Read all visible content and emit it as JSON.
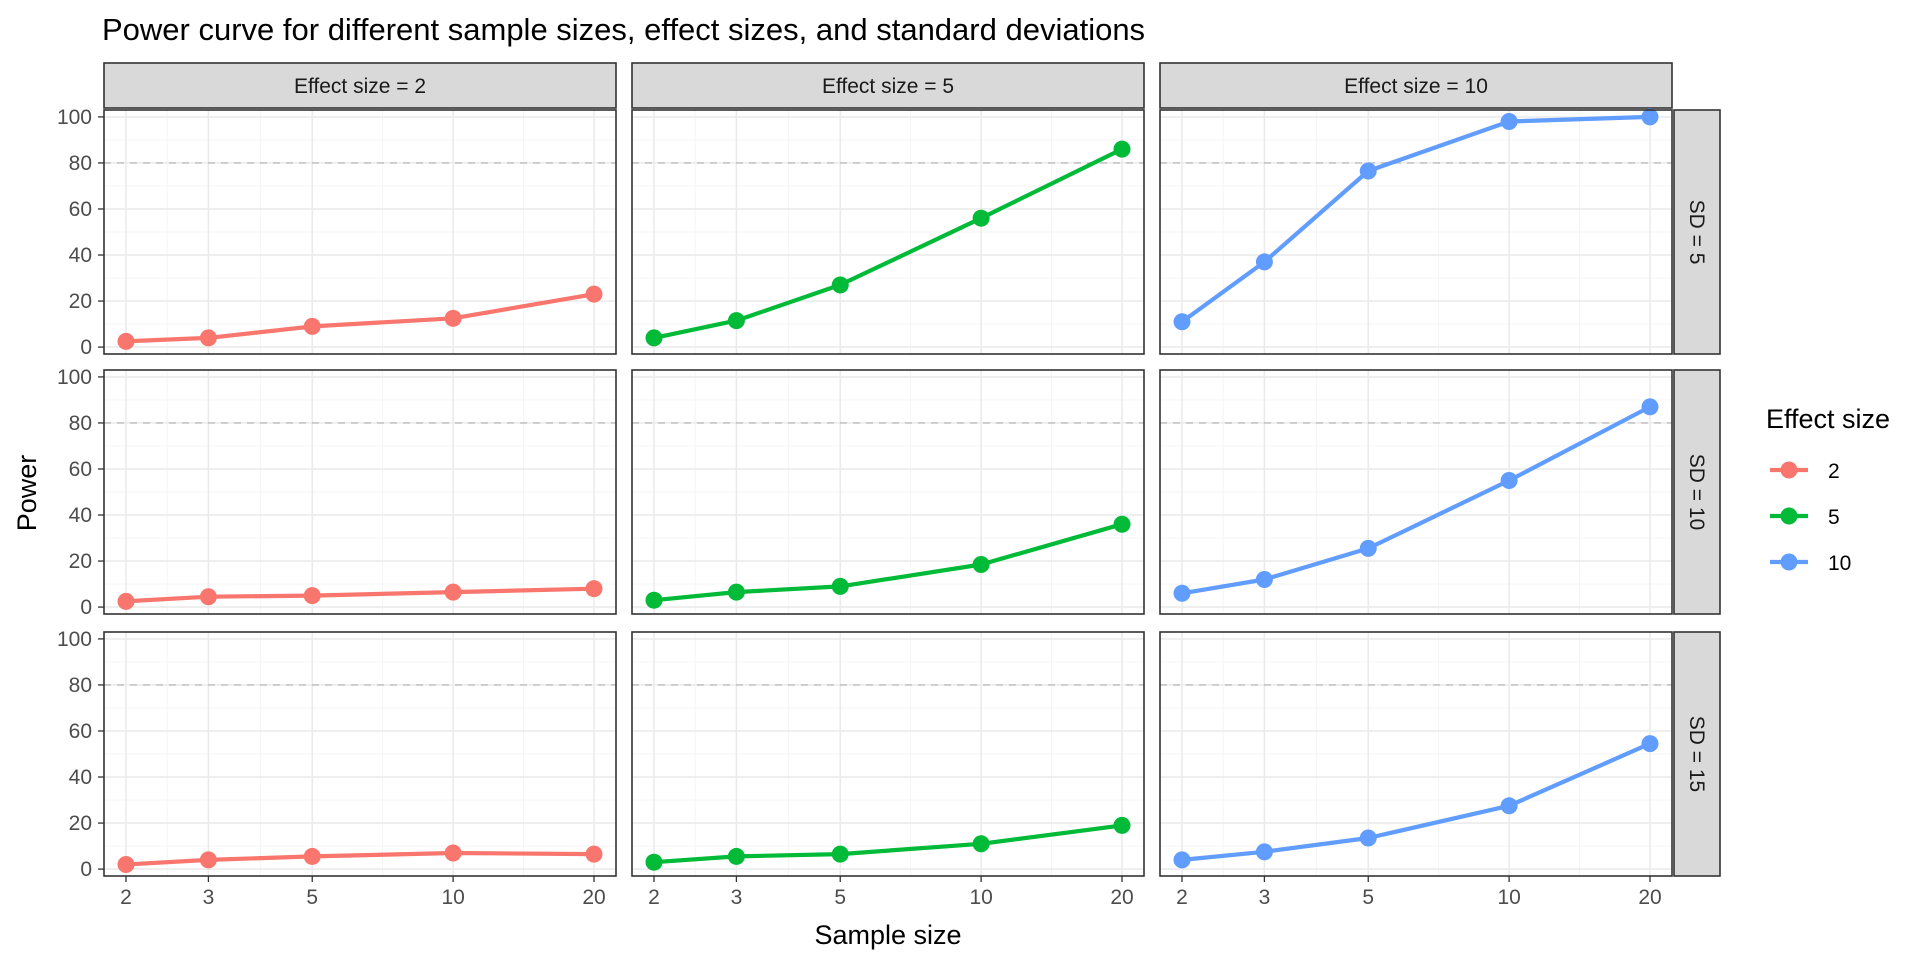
{
  "chart_data": {
    "type": "line",
    "title": "Power curve for different sample sizes, effect sizes, and standard deviations",
    "xlabel": "Sample size",
    "ylabel": "Power",
    "x_scale": "log",
    "x_ticks": [
      2,
      3,
      5,
      10,
      20
    ],
    "y_ticks": [
      0,
      20,
      40,
      60,
      80,
      100
    ],
    "ylim": [
      -3,
      103
    ],
    "reference_line_y": 80,
    "grid": true,
    "facet_columns": [
      {
        "effect_size": 2,
        "label": "Effect size = 2"
      },
      {
        "effect_size": 5,
        "label": "Effect size = 5"
      },
      {
        "effect_size": 10,
        "label": "Effect size = 10"
      }
    ],
    "facet_rows": [
      {
        "sd": 5,
        "label": "SD = 5"
      },
      {
        "sd": 10,
        "label": "SD = 10"
      },
      {
        "sd": 15,
        "label": "SD = 15"
      }
    ],
    "legend": {
      "title": "Effect size",
      "placement": "right",
      "entries": [
        {
          "label": "2",
          "color": "#F8766D"
        },
        {
          "label": "5",
          "color": "#00BA38"
        },
        {
          "label": "10",
          "color": "#619CFF"
        }
      ]
    },
    "x": [
      2,
      3,
      5,
      10,
      20
    ],
    "series": [
      {
        "effect_size": 2,
        "sd": 5,
        "values": [
          2.5,
          4,
          9,
          12.5,
          23
        ]
      },
      {
        "effect_size": 2,
        "sd": 10,
        "values": [
          2.5,
          4.5,
          5,
          6.5,
          8
        ]
      },
      {
        "effect_size": 2,
        "sd": 15,
        "values": [
          2,
          4,
          5.5,
          7,
          6.5
        ]
      },
      {
        "effect_size": 5,
        "sd": 5,
        "values": [
          4,
          11.5,
          27,
          56,
          86
        ]
      },
      {
        "effect_size": 5,
        "sd": 10,
        "values": [
          3,
          6.5,
          9,
          18.5,
          36
        ]
      },
      {
        "effect_size": 5,
        "sd": 15,
        "values": [
          3,
          5.5,
          6.5,
          11,
          19
        ]
      },
      {
        "effect_size": 10,
        "sd": 5,
        "values": [
          11,
          37,
          76.5,
          98,
          100
        ]
      },
      {
        "effect_size": 10,
        "sd": 10,
        "values": [
          6,
          12,
          25.5,
          55,
          87
        ]
      },
      {
        "effect_size": 10,
        "sd": 15,
        "values": [
          4,
          7.5,
          13.5,
          27.5,
          54.5
        ]
      }
    ]
  }
}
